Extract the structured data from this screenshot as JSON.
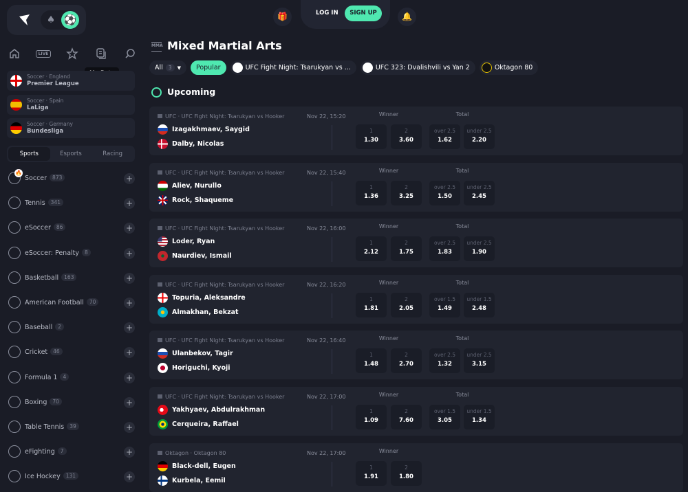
{
  "header": {
    "login": "LOG IN",
    "signup": "SIGN UP",
    "tooltip": "My Bets"
  },
  "colors": {
    "accent": "#4fe8b0",
    "background": "#1a1c26",
    "card": "#21242f"
  },
  "nav_icons": [
    "home-icon",
    "live-icon",
    "star-icon",
    "my-bets-icon",
    "search-icon"
  ],
  "nav_live_label": "LIVE",
  "leagues": [
    {
      "sub": "Soccer · England",
      "name": "Premier League",
      "flag": "en"
    },
    {
      "sub": "Soccer · Spain",
      "name": "LaLiga",
      "flag": "es"
    },
    {
      "sub": "Soccer · Germany",
      "name": "Bundesliga",
      "flag": "de"
    }
  ],
  "tabs": [
    "Sports",
    "Esports",
    "Racing"
  ],
  "sports": [
    {
      "name": "Soccer",
      "count": "873"
    },
    {
      "name": "Tennis",
      "count": "341"
    },
    {
      "name": "eSoccer",
      "count": "86"
    },
    {
      "name": "eSoccer: Penalty",
      "count": "8"
    },
    {
      "name": "Basketball",
      "count": "163"
    },
    {
      "name": "American Football",
      "count": "70"
    },
    {
      "name": "Baseball",
      "count": "2"
    },
    {
      "name": "Cricket",
      "count": "46"
    },
    {
      "name": "Formula 1",
      "count": "4"
    },
    {
      "name": "Boxing",
      "count": "70"
    },
    {
      "name": "Table Tennis",
      "count": "39"
    },
    {
      "name": "eFighting",
      "count": "7"
    },
    {
      "name": "Ice Hockey",
      "count": "131"
    }
  ],
  "page": {
    "icon_label": "MMA",
    "title": "Mixed Martial Arts",
    "section": "Upcoming"
  },
  "filters": {
    "all": "All",
    "all_count": "3",
    "popular": "Popular",
    "chips": [
      {
        "label": "UFC Fight Night: Tsarukyan vs ...",
        "logo": "UFC"
      },
      {
        "label": "UFC 323: Dvalishvili vs Yan 2",
        "logo": "UFC"
      },
      {
        "label": "Oktagon 80",
        "logo": "oktagon"
      }
    ]
  },
  "markets": {
    "winner": "Winner",
    "total": "Total"
  },
  "events": [
    {
      "meta": "UFC · UFC Fight Night: Tsarukyan vs Hooker",
      "date": "Nov 22, 15:20",
      "t1": "Izagakhmaev, Saygid",
      "f1": "ru",
      "t2": "Dalby, Nicolas",
      "f2": "dk",
      "odds": [
        {
          "l": "1",
          "v": "1.30"
        },
        {
          "l": "2",
          "v": "3.60"
        },
        {
          "l": "over 2.5",
          "v": "1.62"
        },
        {
          "l": "under 2.5",
          "v": "2.20"
        }
      ]
    },
    {
      "meta": "UFC · UFC Fight Night: Tsarukyan vs Hooker",
      "date": "Nov 22, 15:40",
      "t1": "Aliev, Nurullo",
      "f1": "tj",
      "t2": "Rock, Shaqueme",
      "f2": "gb",
      "odds": [
        {
          "l": "1",
          "v": "1.36"
        },
        {
          "l": "2",
          "v": "3.25"
        },
        {
          "l": "over 2.5",
          "v": "1.50"
        },
        {
          "l": "under 2.5",
          "v": "2.45"
        }
      ]
    },
    {
      "meta": "UFC · UFC Fight Night: Tsarukyan vs Hooker",
      "date": "Nov 22, 16:00",
      "t1": "Loder, Ryan",
      "f1": "us",
      "t2": "Naurdiev, Ismail",
      "f2": "ma",
      "odds": [
        {
          "l": "1",
          "v": "2.12"
        },
        {
          "l": "2",
          "v": "1.75"
        },
        {
          "l": "over 2.5",
          "v": "1.83"
        },
        {
          "l": "under 2.5",
          "v": "1.90"
        }
      ]
    },
    {
      "meta": "UFC · UFC Fight Night: Tsarukyan vs Hooker",
      "date": "Nov 22, 16:20",
      "t1": "Topuria, Aleksandre",
      "f1": "ge",
      "t2": "Almakhan, Bekzat",
      "f2": "kz",
      "odds": [
        {
          "l": "1",
          "v": "1.81"
        },
        {
          "l": "2",
          "v": "2.05"
        },
        {
          "l": "over 1.5",
          "v": "1.49"
        },
        {
          "l": "under 1.5",
          "v": "2.48"
        }
      ]
    },
    {
      "meta": "UFC · UFC Fight Night: Tsarukyan vs Hooker",
      "date": "Nov 22, 16:40",
      "t1": "Ulanbekov, Tagir",
      "f1": "ru",
      "t2": "Horiguchi, Kyoji",
      "f2": "jp",
      "odds": [
        {
          "l": "1",
          "v": "1.48"
        },
        {
          "l": "2",
          "v": "2.70"
        },
        {
          "l": "over 2.5",
          "v": "1.32"
        },
        {
          "l": "under 2.5",
          "v": "3.15"
        }
      ]
    },
    {
      "meta": "UFC · UFC Fight Night: Tsarukyan vs Hooker",
      "date": "Nov 22, 17:00",
      "t1": "Yakhyaev, Abdulrakhman",
      "f1": "tr",
      "t2": "Cerqueira, Raffael",
      "f2": "br",
      "odds": [
        {
          "l": "1",
          "v": "1.09"
        },
        {
          "l": "2",
          "v": "7.60"
        },
        {
          "l": "over 1.5",
          "v": "3.05"
        },
        {
          "l": "under 1.5",
          "v": "1.34"
        }
      ]
    },
    {
      "meta": "Oktagon · Oktagon 80",
      "date": "Nov 22, 17:00",
      "t1": "Black-dell, Eugen",
      "f1": "de",
      "t2": "Kurbela, Eemil",
      "f2": "fi",
      "odds": [
        {
          "l": "1",
          "v": "1.91"
        },
        {
          "l": "2",
          "v": "1.80"
        }
      ]
    }
  ]
}
